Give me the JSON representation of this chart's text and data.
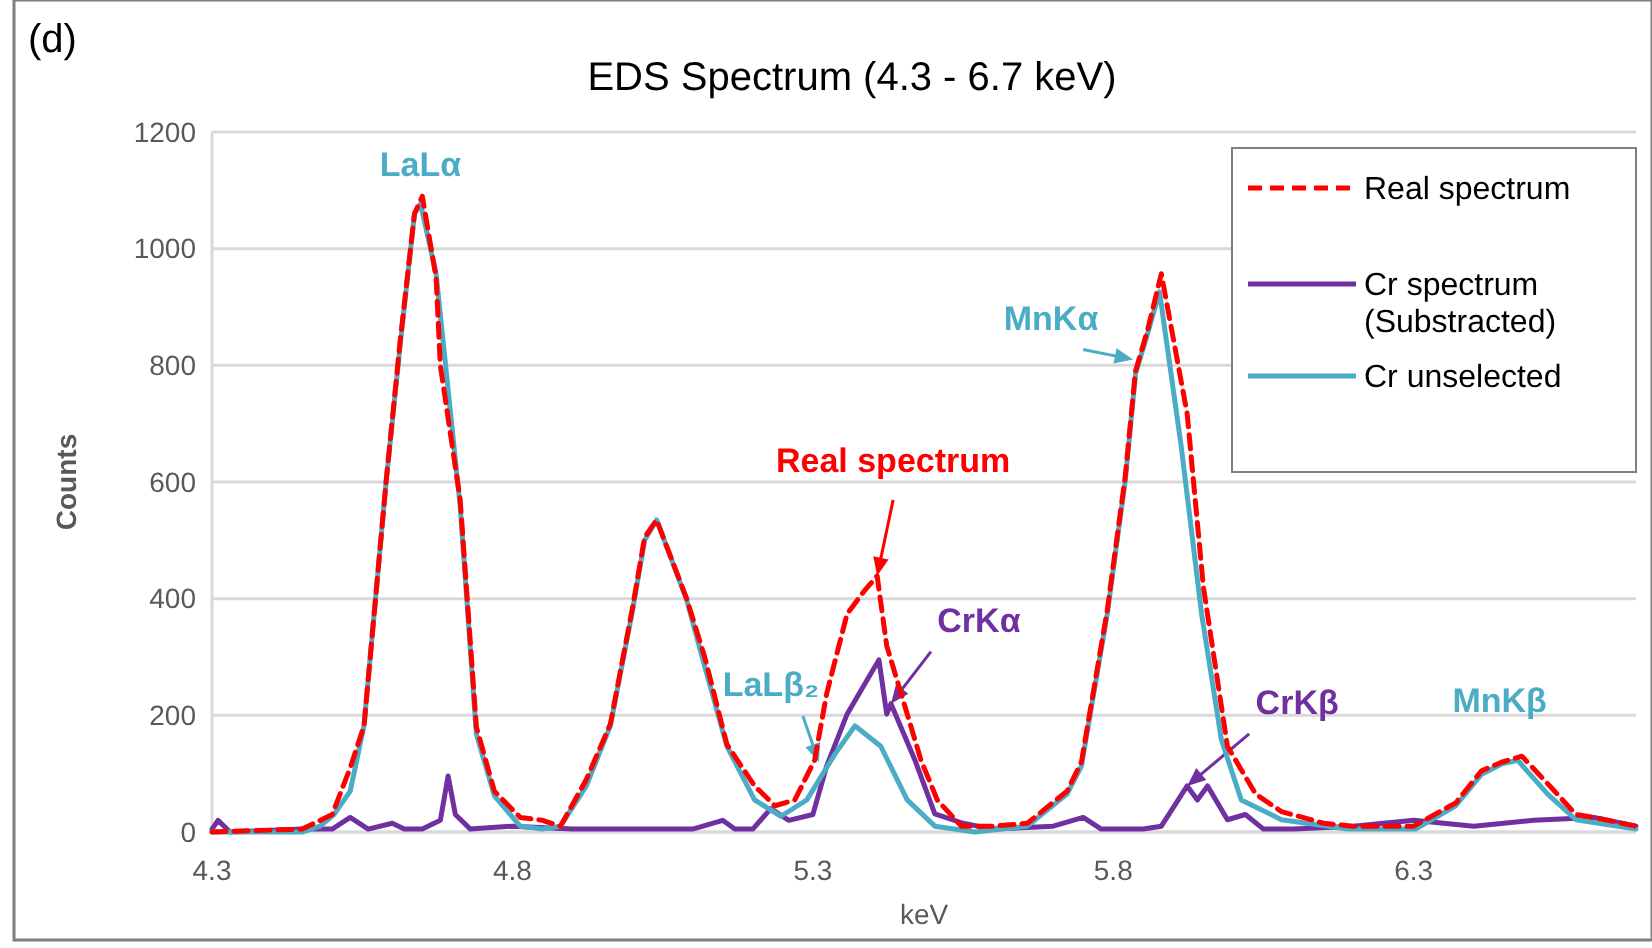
{
  "chart_data": {
    "type": "line",
    "title": "EDS Spectrum (4.3 - 6.7 keV)",
    "xlabel": "keV",
    "ylabel": "Counts",
    "xlim": [
      4.3,
      6.67
    ],
    "xticks": [
      4.3,
      4.8,
      5.3,
      5.8,
      6.3
    ],
    "ylim": [
      0,
      1200
    ],
    "yticks": [
      0,
      200,
      400,
      600,
      800,
      1000,
      1200
    ],
    "grid": "y",
    "legend": "top right",
    "marker": "none",
    "series": [
      {
        "name": "Real spectrum",
        "color": "#ff0000",
        "line_style": "dashed",
        "x": [
          4.3,
          4.45,
          4.5,
          4.53,
          4.553,
          4.59,
          4.613,
          4.637,
          4.65,
          4.673,
          4.68,
          4.713,
          4.74,
          4.77,
          4.813,
          4.85,
          4.88,
          4.923,
          4.963,
          5.0,
          5.02,
          5.04,
          5.09,
          5.12,
          5.157,
          5.203,
          5.237,
          5.27,
          5.303,
          5.323,
          5.357,
          5.387,
          5.407,
          5.423,
          5.447,
          5.48,
          5.507,
          5.547,
          5.6,
          5.657,
          5.723,
          5.747,
          5.79,
          5.82,
          5.837,
          5.857,
          5.88,
          5.923,
          5.95,
          5.99,
          6.037,
          6.08,
          6.15,
          6.2,
          6.3,
          6.37,
          6.413,
          6.447,
          6.48,
          6.53,
          6.57,
          6.6,
          6.67
        ],
        "values": [
          0,
          5,
          30,
          110,
          182,
          603,
          840,
          1060,
          1090,
          950,
          800,
          570,
          180,
          70,
          25,
          20,
          10,
          90,
          185,
          385,
          505,
          535,
          400,
          300,
          150,
          79,
          45,
          55,
          123,
          237,
          374,
          415,
          439,
          319,
          237,
          123,
          55,
          10,
          10,
          15,
          70,
          120,
          380,
          610,
          790,
          860,
          957,
          717,
          420,
          147,
          65,
          35,
          15,
          10,
          10,
          50,
          105,
          120,
          130,
          75,
          30,
          25,
          10
        ]
      },
      {
        "name": "Cr spectrum (Substracted)",
        "color": "#7030a0",
        "line_style": "solid",
        "x": [
          4.3,
          4.31,
          4.33,
          4.45,
          4.5,
          4.53,
          4.56,
          4.6,
          4.62,
          4.65,
          4.68,
          4.693,
          4.705,
          4.73,
          4.8,
          4.9,
          5.0,
          5.1,
          5.15,
          5.17,
          5.2,
          5.23,
          5.26,
          5.3,
          5.323,
          5.357,
          5.39,
          5.41,
          5.423,
          5.43,
          5.47,
          5.503,
          5.55,
          5.6,
          5.7,
          5.75,
          5.78,
          5.85,
          5.88,
          5.923,
          5.94,
          5.957,
          5.99,
          6.02,
          6.05,
          6.1,
          6.2,
          6.3,
          6.4,
          6.5,
          6.6,
          6.67
        ],
        "values": [
          5,
          20,
          0,
          5,
          5,
          25,
          5,
          15,
          5,
          5,
          20,
          96,
          30,
          5,
          10,
          5,
          5,
          5,
          20,
          5,
          5,
          40,
          20,
          30,
          113,
          202,
          260,
          295,
          202,
          220,
          123,
          31,
          15,
          5,
          10,
          25,
          5,
          5,
          10,
          79,
          55,
          79,
          21,
          30,
          5,
          5,
          10,
          20,
          10,
          20,
          25,
          10
        ]
      },
      {
        "name": "Cr unselected",
        "color": "#4bacc6",
        "line_style": "solid",
        "x": [
          4.3,
          4.45,
          4.48,
          4.503,
          4.53,
          4.553,
          4.59,
          4.613,
          4.637,
          4.647,
          4.673,
          4.713,
          4.74,
          4.77,
          4.813,
          4.85,
          4.88,
          4.923,
          4.963,
          5.0,
          5.02,
          5.04,
          5.09,
          5.12,
          5.157,
          5.203,
          5.247,
          5.29,
          5.337,
          5.37,
          5.413,
          5.457,
          5.503,
          5.57,
          5.657,
          5.723,
          5.747,
          5.79,
          5.82,
          5.837,
          5.857,
          5.877,
          5.913,
          5.947,
          5.98,
          6.013,
          6.08,
          6.19,
          6.303,
          6.37,
          6.413,
          6.447,
          6.473,
          6.523,
          6.57,
          6.67
        ],
        "values": [
          0,
          0,
          10,
          30,
          70,
          182,
          603,
          833,
          1060,
          1077,
          957,
          559,
          168,
          62,
          10,
          5,
          10,
          79,
          182,
          380,
          500,
          535,
          398,
          284,
          147,
          55,
          27,
          55,
          134,
          182,
          147,
          55,
          10,
          0,
          10,
          65,
          113,
          374,
          603,
          785,
          854,
          926,
          662,
          374,
          158,
          55,
          21,
          5,
          5,
          45,
          99,
          117,
          123,
          65,
          21,
          5
        ]
      }
    ],
    "annotations": [
      "(d)",
      {
        "text": "LaLα",
        "x": 4.647,
        "y": 1077
      },
      {
        "text": "Real spectrum",
        "x": 5.407,
        "y": 439
      },
      {
        "text": "CrKα",
        "x": 5.43,
        "y": 220
      },
      {
        "text": "LaLβ₂",
        "x": 5.31,
        "y": 120
      },
      {
        "text": "MnKα",
        "x": 5.833,
        "y": 810
      },
      {
        "text": "CrKβ",
        "x": 5.923,
        "y": 79
      },
      {
        "text": "MnKβ",
        "x": 6.473,
        "y": 123
      }
    ]
  }
}
